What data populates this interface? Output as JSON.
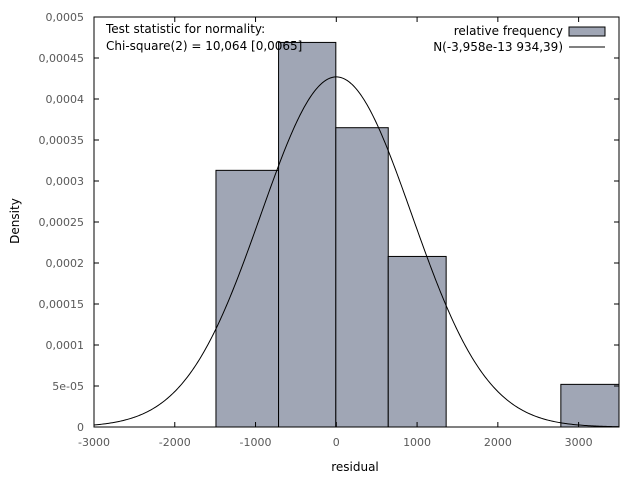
{
  "chart_data": {
    "type": "bar",
    "title": "",
    "xlabel": "residual",
    "ylabel": "Density",
    "xlim": [
      -3000,
      3500
    ],
    "ylim": [
      0,
      0.0005
    ],
    "xticks": [
      -3000,
      -2000,
      -1000,
      0,
      1000,
      2000,
      3000
    ],
    "xtick_labels": [
      "-3000",
      "-2000",
      "-1000",
      "0",
      "1000",
      "2000",
      "3000"
    ],
    "yticks": [
      0,
      5e-05,
      0.0001,
      0.00015,
      0.0002,
      0.00025,
      0.0003,
      0.00035,
      0.0004,
      0.00045,
      0.0005
    ],
    "ytick_labels": [
      "0",
      "5e-05",
      "0,0001",
      "0,00015",
      "0,0002",
      "0,00025",
      "0,0003",
      "0,00035",
      "0,0004",
      "0,00045",
      "0,0005"
    ],
    "grid": false,
    "legend_position": "top-right",
    "annotation": {
      "line1": "Test statistic for normality:",
      "line2": "Chi-square(2) = 10,064 [0,0065]"
    },
    "series": [
      {
        "name": "relative frequency",
        "kind": "histogram",
        "color": "#a0a6b5",
        "bins": [
          {
            "x0": -1490,
            "x1": -715,
            "value": 0.000313
          },
          {
            "x0": -715,
            "x1": -6,
            "value": 0.000469
          },
          {
            "x0": -6,
            "x1": 643,
            "value": 0.000365
          },
          {
            "x0": 643,
            "x1": 1360,
            "value": 0.000208
          },
          {
            "x0": 2780,
            "x1": 3500,
            "value": 5.2e-05
          }
        ]
      },
      {
        "name": "N(-3,958e-13 934,39)",
        "kind": "normal-curve",
        "color": "#000000",
        "mean": -3.958e-13,
        "sd": 934.39
      }
    ]
  }
}
